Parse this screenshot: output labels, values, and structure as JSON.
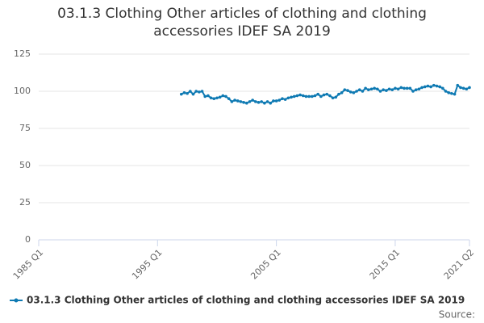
{
  "chart_data": {
    "type": "line",
    "title": "03.1.3 Clothing Other articles of clothing and clothing accessories IDEF SA 2019",
    "source": "Source:",
    "categories": [
      "1985 Q1",
      null,
      null,
      null,
      null,
      null,
      null,
      null,
      null,
      null,
      null,
      null,
      null,
      null,
      null,
      null,
      null,
      null,
      null,
      null,
      null,
      null,
      null,
      null,
      null,
      null,
      null,
      null,
      null,
      null,
      null,
      null,
      null,
      null,
      null,
      null,
      null,
      null,
      null,
      null,
      "1995 Q1",
      null,
      null,
      null,
      null,
      null,
      null,
      null,
      null,
      null,
      null,
      null,
      null,
      null,
      null,
      null,
      null,
      null,
      null,
      null,
      null,
      null,
      null,
      null,
      null,
      null,
      null,
      null,
      null,
      null,
      null,
      null,
      null,
      null,
      null,
      null,
      null,
      null,
      null,
      null,
      "2005 Q1",
      null,
      null,
      null,
      null,
      null,
      null,
      null,
      null,
      null,
      null,
      null,
      null,
      null,
      null,
      null,
      null,
      null,
      null,
      null,
      null,
      null,
      null,
      null,
      null,
      null,
      null,
      null,
      null,
      null,
      null,
      null,
      null,
      null,
      null,
      null,
      null,
      null,
      null,
      null,
      "2015 Q1",
      null,
      null,
      null,
      null,
      null,
      null,
      null,
      null,
      null,
      null,
      null,
      null,
      null,
      null,
      null,
      null,
      null,
      null,
      null,
      null,
      null,
      null,
      null,
      null,
      "2021 Q2"
    ],
    "series": [
      {
        "name": "03.1.3 Clothing Other articles of clothing and clothing accessories IDEF SA 2019",
        "color": "#0f7ab3",
        "values": [
          null,
          null,
          null,
          null,
          null,
          null,
          null,
          null,
          null,
          null,
          null,
          null,
          null,
          null,
          null,
          null,
          null,
          null,
          null,
          null,
          null,
          null,
          null,
          null,
          null,
          null,
          null,
          null,
          null,
          null,
          null,
          null,
          null,
          null,
          null,
          null,
          null,
          null,
          null,
          null,
          null,
          null,
          null,
          null,
          null,
          null,
          null,
          null,
          98,
          99,
          98.5,
          100,
          98,
          100,
          99.5,
          100,
          96.5,
          97,
          95.5,
          95,
          95.5,
          96,
          97,
          96.5,
          95,
          93,
          94,
          93.5,
          93,
          92.5,
          92,
          93,
          94,
          93,
          92.5,
          93,
          92,
          93,
          92,
          93.5,
          93.5,
          94,
          95,
          94.5,
          95.5,
          96,
          96.5,
          97,
          97.5,
          97,
          96.5,
          96.5,
          96.5,
          97,
          98,
          96.5,
          97.5,
          98,
          97,
          95.5,
          96,
          98,
          99,
          101,
          100.5,
          99.5,
          99,
          100,
          101,
          100,
          102,
          101,
          101.5,
          102,
          101.5,
          100,
          101,
          100.5,
          101.5,
          101,
          102,
          101.5,
          102.5,
          102,
          102,
          102,
          100,
          101,
          101.5,
          102.5,
          103,
          103.5,
          103,
          104,
          103.5,
          103,
          102,
          100,
          99,
          98.5,
          98,
          104,
          102.5,
          102,
          101.5,
          102.5
        ]
      }
    ],
    "ylim": [
      0,
      125
    ],
    "yticks": [
      0,
      25,
      50,
      75,
      100,
      125
    ],
    "grid": true
  }
}
